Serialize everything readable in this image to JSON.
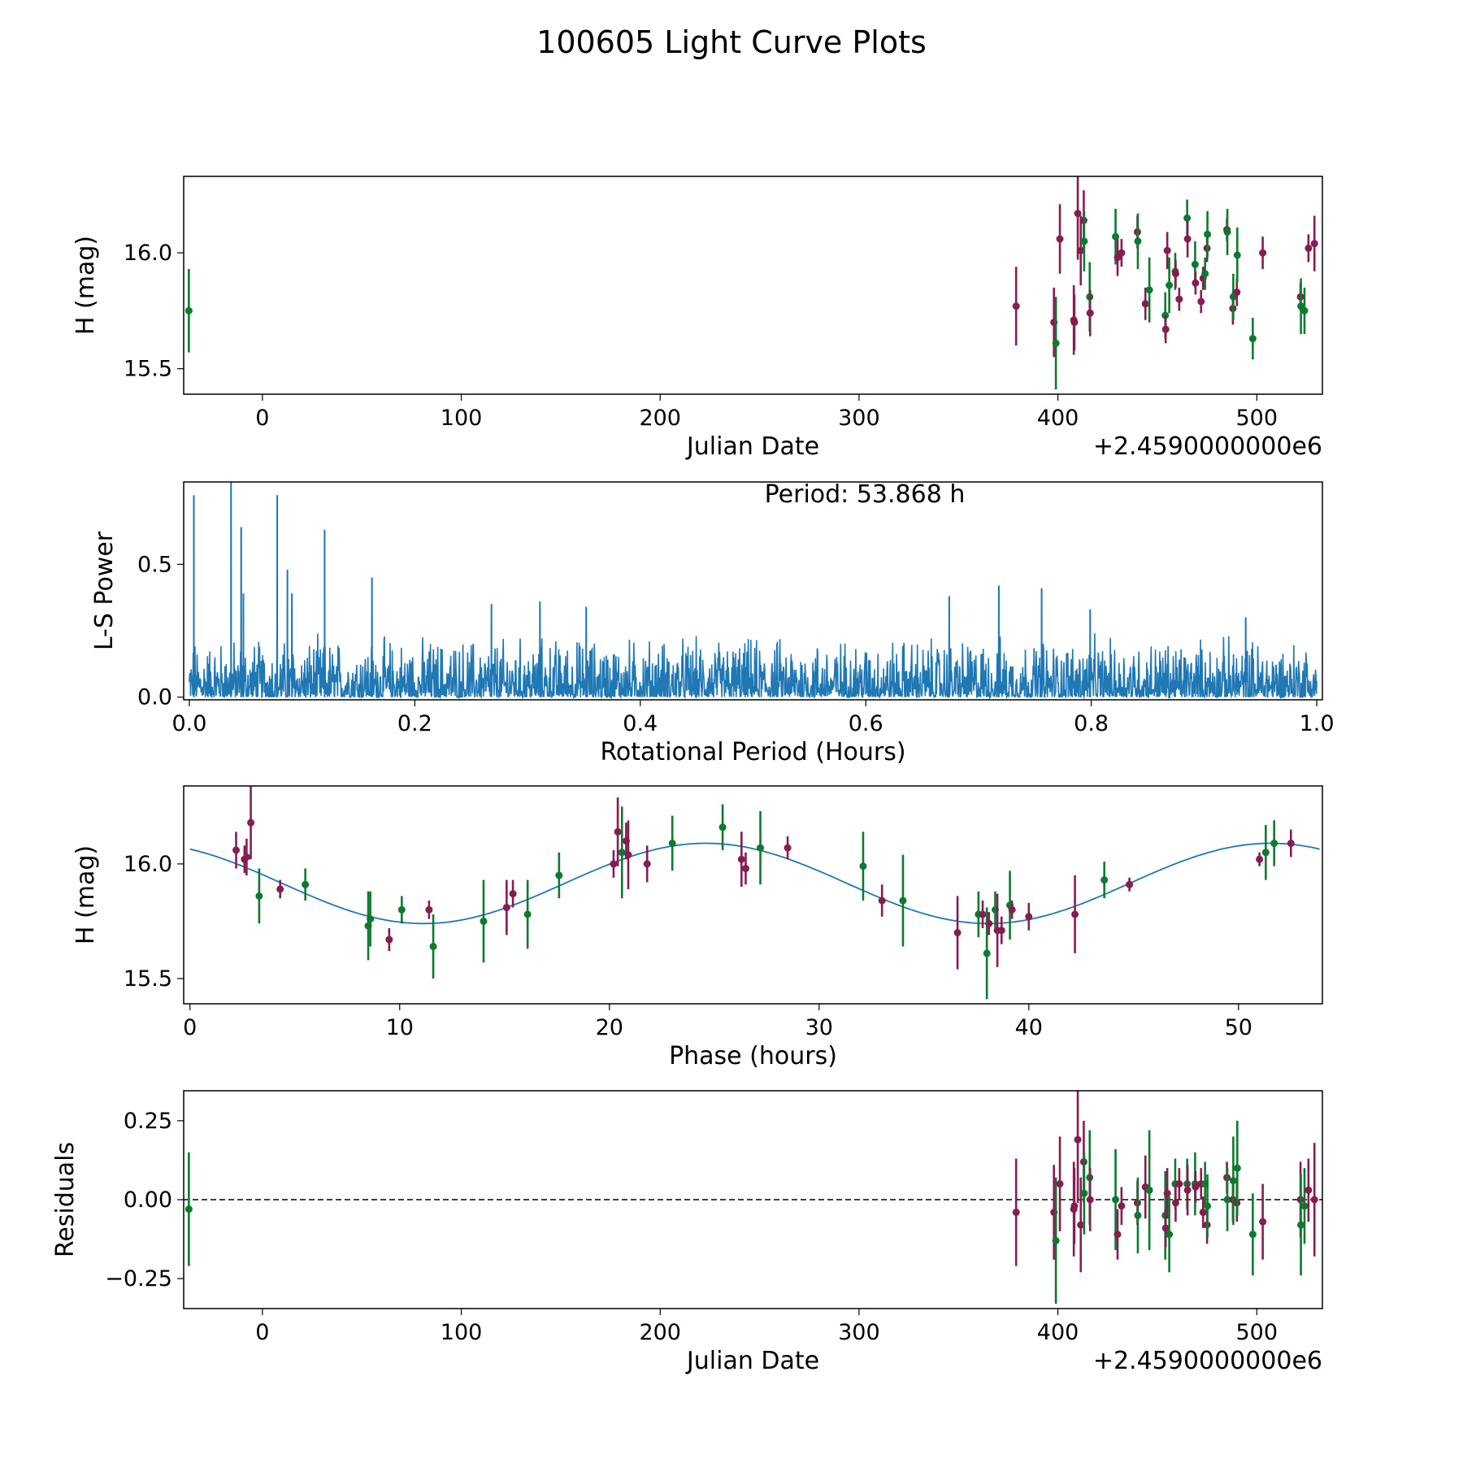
{
  "title": "100605 Light Curve Plots",
  "colors": {
    "m": "#861d51",
    "g": "#0d7a2f",
    "line": "#1f77b4",
    "model": "#1f77b4"
  },
  "chart_data": [
    {
      "type": "scatter",
      "name": "light-curve",
      "xlabel": "Julian Date",
      "ylabel": "H (mag)",
      "offset_text": "+2.4590000000e6",
      "xlim": [
        -39.6,
        533
      ],
      "ylim": [
        15.39,
        16.33
      ],
      "xticks": [
        {
          "v": 0,
          "label": "0"
        },
        {
          "v": 100,
          "label": "100"
        },
        {
          "v": 200,
          "label": "200"
        },
        {
          "v": 300,
          "label": "300"
        },
        {
          "v": 400,
          "label": "400"
        },
        {
          "v": 500,
          "label": "500"
        }
      ],
      "yticks": [
        {
          "v": 15.5,
          "label": "15.5"
        },
        {
          "v": 16.0,
          "label": "16.0"
        }
      ],
      "points_format": [
        "jd_offset",
        "mag",
        "err",
        "band"
      ],
      "points": [
        [
          -37,
          15.75,
          0.18,
          "g"
        ],
        [
          379,
          15.77,
          0.17,
          "m"
        ],
        [
          398,
          15.7,
          0.15,
          "m"
        ],
        [
          399,
          15.61,
          0.2,
          "g"
        ],
        [
          401,
          16.06,
          0.15,
          "m"
        ],
        [
          408,
          15.71,
          0.15,
          "m"
        ],
        [
          408.3,
          15.7,
          0.12,
          "m"
        ],
        [
          410,
          16.17,
          0.2,
          "m"
        ],
        [
          411.5,
          16.01,
          0.15,
          "m"
        ],
        [
          413,
          16.14,
          0.13,
          "m"
        ],
        [
          413.2,
          16.05,
          0.13,
          "g"
        ],
        [
          416,
          15.81,
          0.15,
          "g"
        ],
        [
          416.2,
          15.74,
          0.1,
          "m"
        ],
        [
          429,
          16.07,
          0.12,
          "g"
        ],
        [
          430,
          15.98,
          0.08,
          "m"
        ],
        [
          432,
          16.0,
          0.06,
          "m"
        ],
        [
          440,
          16.09,
          0.07,
          "m"
        ],
        [
          440.2,
          16.05,
          0.12,
          "g"
        ],
        [
          444,
          15.78,
          0.07,
          "m"
        ],
        [
          446,
          15.84,
          0.14,
          "g"
        ],
        [
          454,
          15.73,
          0.1,
          "g"
        ],
        [
          454.2,
          15.67,
          0.06,
          "m"
        ],
        [
          455,
          16.01,
          0.08,
          "m"
        ],
        [
          456,
          15.86,
          0.12,
          "g"
        ],
        [
          459,
          15.92,
          0.08,
          "g"
        ],
        [
          459.2,
          15.91,
          0.06,
          "m"
        ],
        [
          461,
          15.8,
          0.05,
          "m"
        ],
        [
          465,
          16.15,
          0.08,
          "g"
        ],
        [
          465.2,
          16.06,
          0.08,
          "m"
        ],
        [
          469,
          15.95,
          0.1,
          "g"
        ],
        [
          469.2,
          15.87,
          0.05,
          "m"
        ],
        [
          472,
          15.79,
          0.05,
          "m"
        ],
        [
          473,
          15.89,
          0.05,
          "m"
        ],
        [
          474,
          15.91,
          0.07,
          "g"
        ],
        [
          475,
          16.02,
          0.06,
          "m"
        ],
        [
          475.2,
          16.08,
          0.1,
          "g"
        ],
        [
          485,
          16.1,
          0.05,
          "m"
        ],
        [
          485.2,
          16.09,
          0.1,
          "g"
        ],
        [
          488,
          15.76,
          0.07,
          "m"
        ],
        [
          488.2,
          15.81,
          0.1,
          "g"
        ],
        [
          490,
          15.83,
          0.06,
          "m"
        ],
        [
          490.2,
          15.99,
          0.12,
          "g"
        ],
        [
          498,
          15.63,
          0.09,
          "g"
        ],
        [
          503,
          16.0,
          0.07,
          "m"
        ],
        [
          522,
          15.81,
          0.06,
          "m"
        ],
        [
          522.2,
          15.77,
          0.12,
          "g"
        ],
        [
          524,
          15.75,
          0.1,
          "g"
        ],
        [
          526,
          16.02,
          0.06,
          "m"
        ],
        [
          529,
          16.04,
          0.12,
          "m"
        ]
      ]
    },
    {
      "type": "line",
      "name": "periodogram",
      "xlabel": "Rotational Period (Hours)",
      "ylabel": "L-S Power",
      "annotation": "Period: 53.868 h",
      "xlim": [
        -0.005,
        1.005
      ],
      "ylim": [
        -0.01,
        0.81
      ],
      "xticks": [
        {
          "v": 0,
          "label": "0.0"
        },
        {
          "v": 0.2,
          "label": "0.2"
        },
        {
          "v": 0.4,
          "label": "0.4"
        },
        {
          "v": 0.6,
          "label": "0.6"
        },
        {
          "v": 0.8,
          "label": "0.8"
        },
        {
          "v": 1.0,
          "label": "1.0"
        }
      ],
      "yticks": [
        {
          "v": 0,
          "label": "0.0"
        },
        {
          "v": 0.5,
          "label": "0.5"
        }
      ],
      "noise_level": 0.25,
      "peaks": [
        [
          0.004,
          0.76
        ],
        [
          0.037,
          0.82
        ],
        [
          0.046,
          0.64
        ],
        [
          0.048,
          0.39
        ],
        [
          0.078,
          0.76
        ],
        [
          0.087,
          0.48
        ],
        [
          0.091,
          0.39
        ],
        [
          0.12,
          0.63
        ],
        [
          0.162,
          0.45
        ],
        [
          0.268,
          0.35
        ],
        [
          0.311,
          0.36
        ],
        [
          0.352,
          0.34
        ],
        [
          0.674,
          0.38
        ],
        [
          0.718,
          0.42
        ],
        [
          0.756,
          0.41
        ],
        [
          0.799,
          0.33
        ],
        [
          0.937,
          0.3
        ]
      ]
    },
    {
      "type": "scatter",
      "name": "phase-folded",
      "xlabel": "Phase (hours)",
      "ylabel": "H (mag)",
      "xlim": [
        -0.3,
        54
      ],
      "ylim": [
        15.39,
        16.34
      ],
      "xticks": [
        {
          "v": 0,
          "label": "0"
        },
        {
          "v": 10,
          "label": "10"
        },
        {
          "v": 20,
          "label": "20"
        },
        {
          "v": 30,
          "label": "30"
        },
        {
          "v": 40,
          "label": "40"
        },
        {
          "v": 50,
          "label": "50"
        }
      ],
      "yticks": [
        {
          "v": 15.5,
          "label": "15.5"
        },
        {
          "v": 16.0,
          "label": "16.0"
        }
      ],
      "model": {
        "mean": 15.915,
        "amplitude": 0.175,
        "peak_phase": 24.6,
        "half_period": 26.934,
        "range": [
          0,
          53.868
        ]
      },
      "points_format": [
        "phase_h",
        "mag",
        "err",
        "band"
      ],
      "points": [
        [
          2.2,
          16.06,
          0.08,
          "m"
        ],
        [
          2.6,
          16.02,
          0.06,
          "m"
        ],
        [
          2.7,
          16.03,
          0.08,
          "m"
        ],
        [
          2.9,
          16.18,
          0.16,
          "m"
        ],
        [
          3.3,
          15.86,
          0.12,
          "g"
        ],
        [
          4.3,
          15.89,
          0.04,
          "m"
        ],
        [
          5.5,
          15.91,
          0.07,
          "g"
        ],
        [
          8.5,
          15.73,
          0.15,
          "g"
        ],
        [
          8.6,
          15.76,
          0.12,
          "g"
        ],
        [
          9.5,
          15.67,
          0.05,
          "m"
        ],
        [
          10.1,
          15.8,
          0.06,
          "g"
        ],
        [
          11.4,
          15.8,
          0.04,
          "m"
        ],
        [
          11.6,
          15.64,
          0.14,
          "g"
        ],
        [
          14.0,
          15.75,
          0.18,
          "g"
        ],
        [
          15.1,
          15.81,
          0.12,
          "m"
        ],
        [
          15.4,
          15.87,
          0.06,
          "m"
        ],
        [
          16.1,
          15.78,
          0.15,
          "g"
        ],
        [
          17.6,
          15.95,
          0.1,
          "g"
        ],
        [
          20.2,
          16.0,
          0.06,
          "m"
        ],
        [
          20.4,
          16.14,
          0.15,
          "m"
        ],
        [
          20.6,
          16.05,
          0.2,
          "g"
        ],
        [
          20.8,
          16.1,
          0.08,
          "m"
        ],
        [
          20.9,
          16.04,
          0.15,
          "m"
        ],
        [
          21.8,
          16.0,
          0.08,
          "m"
        ],
        [
          23.0,
          16.09,
          0.12,
          "g"
        ],
        [
          25.4,
          16.16,
          0.1,
          "g"
        ],
        [
          26.3,
          16.02,
          0.12,
          "m"
        ],
        [
          26.5,
          15.98,
          0.07,
          "m"
        ],
        [
          27.2,
          16.07,
          0.16,
          "g"
        ],
        [
          28.5,
          16.07,
          0.05,
          "m"
        ],
        [
          32.1,
          15.99,
          0.15,
          "g"
        ],
        [
          33.0,
          15.84,
          0.07,
          "m"
        ],
        [
          34.0,
          15.84,
          0.2,
          "g"
        ],
        [
          36.6,
          15.7,
          0.16,
          "m"
        ],
        [
          37.6,
          15.78,
          0.1,
          "g"
        ],
        [
          37.8,
          15.78,
          0.06,
          "m"
        ],
        [
          38.0,
          15.61,
          0.2,
          "g"
        ],
        [
          38.1,
          15.74,
          0.05,
          "m"
        ],
        [
          38.4,
          15.8,
          0.08,
          "g"
        ],
        [
          38.5,
          15.71,
          0.16,
          "m"
        ],
        [
          38.7,
          15.71,
          0.06,
          "m"
        ],
        [
          39.1,
          15.82,
          0.15,
          "g"
        ],
        [
          39.2,
          15.8,
          0.04,
          "m"
        ],
        [
          40.0,
          15.77,
          0.06,
          "m"
        ],
        [
          42.2,
          15.78,
          0.17,
          "m"
        ],
        [
          43.6,
          15.93,
          0.08,
          "g"
        ],
        [
          44.8,
          15.91,
          0.03,
          "m"
        ],
        [
          51.0,
          16.02,
          0.03,
          "m"
        ],
        [
          51.3,
          16.05,
          0.12,
          "g"
        ],
        [
          51.7,
          16.09,
          0.1,
          "g"
        ],
        [
          52.5,
          16.09,
          0.06,
          "m"
        ]
      ]
    },
    {
      "type": "scatter",
      "name": "residuals",
      "xlabel": "Julian Date",
      "ylabel": "Residuals",
      "offset_text": "+2.4590000000e6",
      "xlim": [
        -39.6,
        533
      ],
      "ylim": [
        -0.345,
        0.345
      ],
      "xticks": [
        {
          "v": 0,
          "label": "0"
        },
        {
          "v": 100,
          "label": "100"
        },
        {
          "v": 200,
          "label": "200"
        },
        {
          "v": 300,
          "label": "300"
        },
        {
          "v": 400,
          "label": "400"
        },
        {
          "v": 500,
          "label": "500"
        }
      ],
      "yticks": [
        {
          "v": -0.25,
          "label": "−0.25"
        },
        {
          "v": 0,
          "label": "0.00"
        },
        {
          "v": 0.25,
          "label": "0.25"
        }
      ],
      "zero_line": 0,
      "points_format": [
        "jd_offset",
        "residual",
        "err",
        "band"
      ],
      "points": [
        [
          -37,
          -0.03,
          0.18,
          "g"
        ],
        [
          379,
          -0.04,
          0.17,
          "m"
        ],
        [
          398,
          -0.04,
          0.15,
          "m"
        ],
        [
          399,
          -0.13,
          0.2,
          "g"
        ],
        [
          401,
          0.05,
          0.15,
          "m"
        ],
        [
          408,
          -0.03,
          0.15,
          "m"
        ],
        [
          408.3,
          -0.02,
          0.12,
          "m"
        ],
        [
          410,
          0.19,
          0.2,
          "m"
        ],
        [
          411.5,
          -0.08,
          0.15,
          "m"
        ],
        [
          413,
          0.12,
          0.13,
          "m"
        ],
        [
          413.2,
          0.02,
          0.13,
          "g"
        ],
        [
          416,
          0.07,
          0.15,
          "g"
        ],
        [
          416.2,
          0.0,
          0.1,
          "m"
        ],
        [
          429,
          0.0,
          0.16,
          "g"
        ],
        [
          430,
          -0.11,
          0.08,
          "m"
        ],
        [
          432,
          -0.02,
          0.06,
          "m"
        ],
        [
          440,
          -0.01,
          0.07,
          "m"
        ],
        [
          440.2,
          -0.05,
          0.12,
          "g"
        ],
        [
          444,
          0.04,
          0.1,
          "m"
        ],
        [
          446,
          0.03,
          0.19,
          "g"
        ],
        [
          454,
          -0.05,
          0.14,
          "g"
        ],
        [
          454.2,
          -0.09,
          0.06,
          "m"
        ],
        [
          455,
          0.02,
          0.08,
          "m"
        ],
        [
          456,
          -0.11,
          0.12,
          "g"
        ],
        [
          459,
          0.05,
          0.08,
          "g"
        ],
        [
          459.2,
          -0.01,
          0.06,
          "m"
        ],
        [
          461,
          0.05,
          0.05,
          "m"
        ],
        [
          465,
          0.05,
          0.08,
          "g"
        ],
        [
          465.2,
          0.03,
          0.08,
          "m"
        ],
        [
          469,
          0.05,
          0.1,
          "g"
        ],
        [
          469.2,
          0.04,
          0.05,
          "m"
        ],
        [
          472,
          0.05,
          0.05,
          "m"
        ],
        [
          473,
          -0.04,
          0.05,
          "m"
        ],
        [
          474,
          0.05,
          0.07,
          "g"
        ],
        [
          475,
          -0.08,
          0.06,
          "m"
        ],
        [
          475.2,
          -0.02,
          0.1,
          "g"
        ],
        [
          485,
          0.07,
          0.05,
          "m"
        ],
        [
          485.2,
          0.0,
          0.1,
          "g"
        ],
        [
          488,
          0.0,
          0.07,
          "m"
        ],
        [
          488.2,
          0.06,
          0.14,
          "g"
        ],
        [
          490,
          -0.01,
          0.06,
          "m"
        ],
        [
          490.2,
          0.1,
          0.15,
          "g"
        ],
        [
          498,
          -0.11,
          0.13,
          "g"
        ],
        [
          503,
          -0.07,
          0.12,
          "m"
        ],
        [
          522,
          0.0,
          0.12,
          "m"
        ],
        [
          522.2,
          -0.08,
          0.16,
          "g"
        ],
        [
          524,
          -0.02,
          0.12,
          "g"
        ],
        [
          526,
          0.03,
          0.1,
          "m"
        ],
        [
          529,
          0.0,
          0.18,
          "m"
        ]
      ]
    }
  ]
}
